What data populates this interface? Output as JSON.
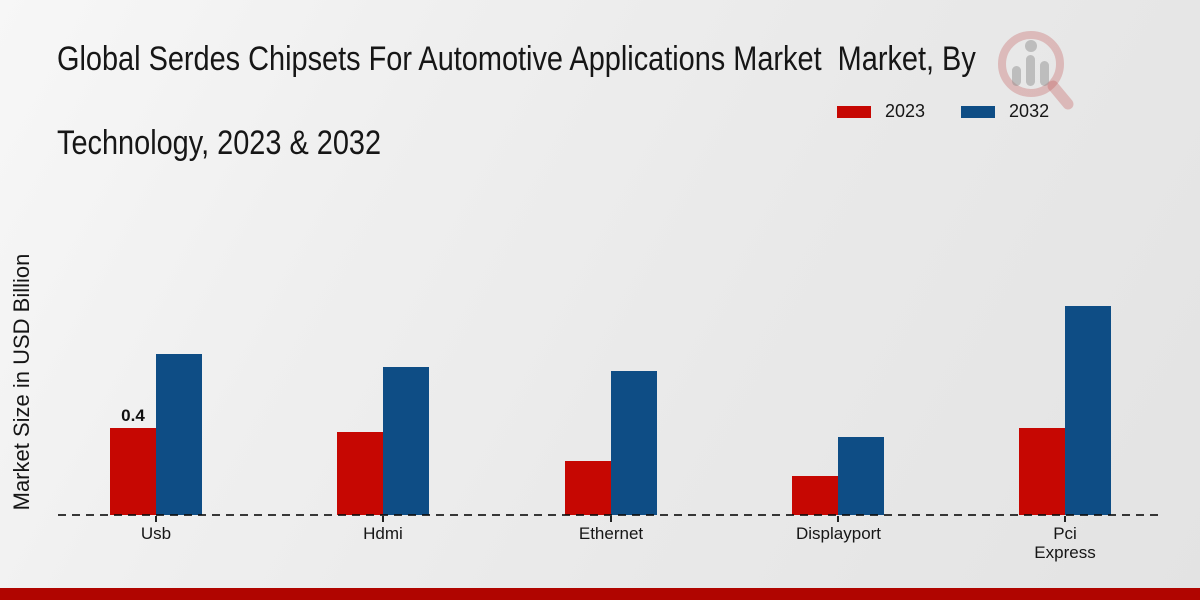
{
  "header": {
    "title_line1": "Global Serdes Chipsets For Automotive Applications Market  Market, By",
    "title_line2": "Technology, 2023 & 2032"
  },
  "y_axis": {
    "label": "Market Size in USD Billion"
  },
  "legend": {
    "items": [
      {
        "label": "2023",
        "color": "#c60702"
      },
      {
        "label": "2032",
        "color": "#0e4d85"
      }
    ]
  },
  "footer": {
    "band_color": "#b00500"
  },
  "watermark": {
    "icon": "magnifier-bar-chart-logo",
    "ring_color": "#c05050",
    "bar_color": "#8a8a8a"
  },
  "chart_data": {
    "type": "bar",
    "title": "Global Serdes Chipsets For Automotive Applications Market  Market, By Technology, 2023 & 2032",
    "categories": [
      "Usb",
      "Hdmi",
      "Ethernet",
      "Displayport",
      "Pci Express"
    ],
    "series": [
      {
        "name": "2023",
        "color": "#c60702",
        "values": [
          0.4,
          0.38,
          0.25,
          0.18,
          0.4
        ]
      },
      {
        "name": "2032",
        "color": "#0e4d85",
        "values": [
          0.74,
          0.68,
          0.66,
          0.36,
          0.96
        ]
      }
    ],
    "xlabel": "",
    "ylabel": "Market Size in USD Billion",
    "ylim": [
      0,
      1.05
    ],
    "grid": false,
    "legend_position": "top-right",
    "baseline_style": "dashed",
    "annotations": [
      {
        "series": "2023",
        "category": "Usb",
        "text": "0.4"
      }
    ]
  }
}
